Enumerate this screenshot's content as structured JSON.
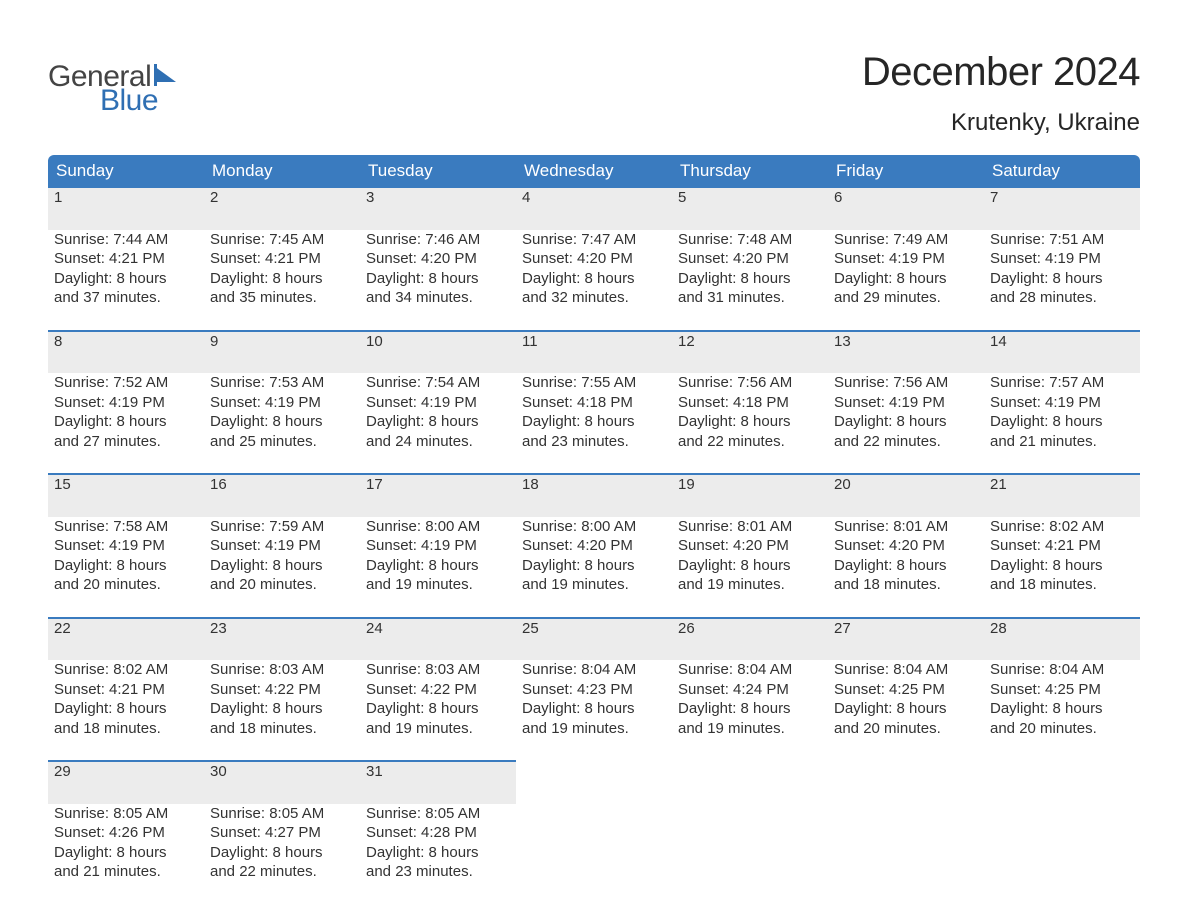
{
  "brand": {
    "line1": "General",
    "line2": "Blue",
    "accent_color": "#2f6fb3"
  },
  "header": {
    "title": "December 2024",
    "location": "Krutenky, Ukraine"
  },
  "style": {
    "header_bg": "#3a7bbf",
    "header_text": "#ffffff",
    "daynum_bg": "#ececec",
    "daynum_color": "#6b6b6b",
    "row_divider": "#3a7bbf",
    "body_text": "#333333",
    "page_bg": "#ffffff",
    "font_family": "Arial, Helvetica, sans-serif",
    "title_fontsize_pt": 30,
    "location_fontsize_pt": 18,
    "dayheader_fontsize_pt": 13,
    "cell_fontsize_pt": 11
  },
  "day_headers": [
    "Sunday",
    "Monday",
    "Tuesday",
    "Wednesday",
    "Thursday",
    "Friday",
    "Saturday"
  ],
  "weeks": [
    [
      {
        "n": "1",
        "sr": "Sunrise: 7:44 AM",
        "ss": "Sunset: 4:21 PM",
        "d1": "Daylight: 8 hours",
        "d2": "and 37 minutes."
      },
      {
        "n": "2",
        "sr": "Sunrise: 7:45 AM",
        "ss": "Sunset: 4:21 PM",
        "d1": "Daylight: 8 hours",
        "d2": "and 35 minutes."
      },
      {
        "n": "3",
        "sr": "Sunrise: 7:46 AM",
        "ss": "Sunset: 4:20 PM",
        "d1": "Daylight: 8 hours",
        "d2": "and 34 minutes."
      },
      {
        "n": "4",
        "sr": "Sunrise: 7:47 AM",
        "ss": "Sunset: 4:20 PM",
        "d1": "Daylight: 8 hours",
        "d2": "and 32 minutes."
      },
      {
        "n": "5",
        "sr": "Sunrise: 7:48 AM",
        "ss": "Sunset: 4:20 PM",
        "d1": "Daylight: 8 hours",
        "d2": "and 31 minutes."
      },
      {
        "n": "6",
        "sr": "Sunrise: 7:49 AM",
        "ss": "Sunset: 4:19 PM",
        "d1": "Daylight: 8 hours",
        "d2": "and 29 minutes."
      },
      {
        "n": "7",
        "sr": "Sunrise: 7:51 AM",
        "ss": "Sunset: 4:19 PM",
        "d1": "Daylight: 8 hours",
        "d2": "and 28 minutes."
      }
    ],
    [
      {
        "n": "8",
        "sr": "Sunrise: 7:52 AM",
        "ss": "Sunset: 4:19 PM",
        "d1": "Daylight: 8 hours",
        "d2": "and 27 minutes."
      },
      {
        "n": "9",
        "sr": "Sunrise: 7:53 AM",
        "ss": "Sunset: 4:19 PM",
        "d1": "Daylight: 8 hours",
        "d2": "and 25 minutes."
      },
      {
        "n": "10",
        "sr": "Sunrise: 7:54 AM",
        "ss": "Sunset: 4:19 PM",
        "d1": "Daylight: 8 hours",
        "d2": "and 24 minutes."
      },
      {
        "n": "11",
        "sr": "Sunrise: 7:55 AM",
        "ss": "Sunset: 4:18 PM",
        "d1": "Daylight: 8 hours",
        "d2": "and 23 minutes."
      },
      {
        "n": "12",
        "sr": "Sunrise: 7:56 AM",
        "ss": "Sunset: 4:18 PM",
        "d1": "Daylight: 8 hours",
        "d2": "and 22 minutes."
      },
      {
        "n": "13",
        "sr": "Sunrise: 7:56 AM",
        "ss": "Sunset: 4:19 PM",
        "d1": "Daylight: 8 hours",
        "d2": "and 22 minutes."
      },
      {
        "n": "14",
        "sr": "Sunrise: 7:57 AM",
        "ss": "Sunset: 4:19 PM",
        "d1": "Daylight: 8 hours",
        "d2": "and 21 minutes."
      }
    ],
    [
      {
        "n": "15",
        "sr": "Sunrise: 7:58 AM",
        "ss": "Sunset: 4:19 PM",
        "d1": "Daylight: 8 hours",
        "d2": "and 20 minutes."
      },
      {
        "n": "16",
        "sr": "Sunrise: 7:59 AM",
        "ss": "Sunset: 4:19 PM",
        "d1": "Daylight: 8 hours",
        "d2": "and 20 minutes."
      },
      {
        "n": "17",
        "sr": "Sunrise: 8:00 AM",
        "ss": "Sunset: 4:19 PM",
        "d1": "Daylight: 8 hours",
        "d2": "and 19 minutes."
      },
      {
        "n": "18",
        "sr": "Sunrise: 8:00 AM",
        "ss": "Sunset: 4:20 PM",
        "d1": "Daylight: 8 hours",
        "d2": "and 19 minutes."
      },
      {
        "n": "19",
        "sr": "Sunrise: 8:01 AM",
        "ss": "Sunset: 4:20 PM",
        "d1": "Daylight: 8 hours",
        "d2": "and 19 minutes."
      },
      {
        "n": "20",
        "sr": "Sunrise: 8:01 AM",
        "ss": "Sunset: 4:20 PM",
        "d1": "Daylight: 8 hours",
        "d2": "and 18 minutes."
      },
      {
        "n": "21",
        "sr": "Sunrise: 8:02 AM",
        "ss": "Sunset: 4:21 PM",
        "d1": "Daylight: 8 hours",
        "d2": "and 18 minutes."
      }
    ],
    [
      {
        "n": "22",
        "sr": "Sunrise: 8:02 AM",
        "ss": "Sunset: 4:21 PM",
        "d1": "Daylight: 8 hours",
        "d2": "and 18 minutes."
      },
      {
        "n": "23",
        "sr": "Sunrise: 8:03 AM",
        "ss": "Sunset: 4:22 PM",
        "d1": "Daylight: 8 hours",
        "d2": "and 18 minutes."
      },
      {
        "n": "24",
        "sr": "Sunrise: 8:03 AM",
        "ss": "Sunset: 4:22 PM",
        "d1": "Daylight: 8 hours",
        "d2": "and 19 minutes."
      },
      {
        "n": "25",
        "sr": "Sunrise: 8:04 AM",
        "ss": "Sunset: 4:23 PM",
        "d1": "Daylight: 8 hours",
        "d2": "and 19 minutes."
      },
      {
        "n": "26",
        "sr": "Sunrise: 8:04 AM",
        "ss": "Sunset: 4:24 PM",
        "d1": "Daylight: 8 hours",
        "d2": "and 19 minutes."
      },
      {
        "n": "27",
        "sr": "Sunrise: 8:04 AM",
        "ss": "Sunset: 4:25 PM",
        "d1": "Daylight: 8 hours",
        "d2": "and 20 minutes."
      },
      {
        "n": "28",
        "sr": "Sunrise: 8:04 AM",
        "ss": "Sunset: 4:25 PM",
        "d1": "Daylight: 8 hours",
        "d2": "and 20 minutes."
      }
    ],
    [
      {
        "n": "29",
        "sr": "Sunrise: 8:05 AM",
        "ss": "Sunset: 4:26 PM",
        "d1": "Daylight: 8 hours",
        "d2": "and 21 minutes."
      },
      {
        "n": "30",
        "sr": "Sunrise: 8:05 AM",
        "ss": "Sunset: 4:27 PM",
        "d1": "Daylight: 8 hours",
        "d2": "and 22 minutes."
      },
      {
        "n": "31",
        "sr": "Sunrise: 8:05 AM",
        "ss": "Sunset: 4:28 PM",
        "d1": "Daylight: 8 hours",
        "d2": "and 23 minutes."
      },
      null,
      null,
      null,
      null
    ]
  ]
}
